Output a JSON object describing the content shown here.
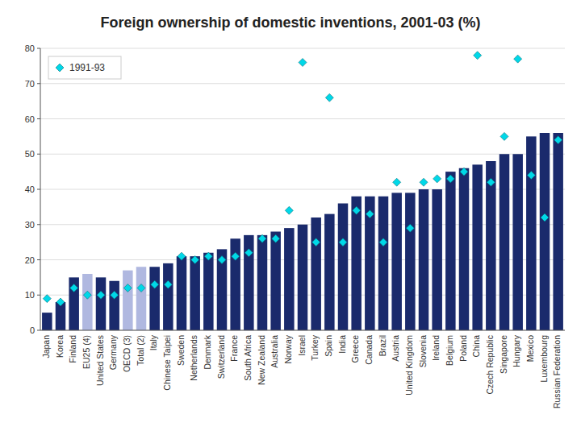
{
  "chart_data": {
    "type": "bar",
    "title": "Foreign ownership of domestic inventions, 2001-03 (%)",
    "categories": [
      "Japan",
      "Korea",
      "Finland",
      "EU25 (4)",
      "United States",
      "Germany",
      "OECD (3)",
      "Total (2)",
      "Italy",
      "Chinese Taipei",
      "Sweden",
      "Netherlands",
      "Denmark",
      "Switzerland",
      "France",
      "South Africa",
      "New Zealand",
      "Australia",
      "Norway",
      "Israel",
      "Turkey",
      "Spain",
      "India",
      "Greece",
      "Canada",
      "Brazil",
      "Austria",
      "United Kingdom",
      "Slovenia",
      "Ireland",
      "Belgium",
      "Poland",
      "China",
      "Czech Republic",
      "Singapore",
      "Hungary",
      "Mexico",
      "Luxembourg",
      "Russian Federation"
    ],
    "series": [
      {
        "type": "bar",
        "colors": [
          "#1a2a6c",
          "#1a2a6c",
          "#1a2a6c",
          "#b0b8e0",
          "#1a2a6c",
          "#1a2a6c",
          "#b0b8e0",
          "#b0b8e0",
          "#1a2a6c",
          "#1a2a6c",
          "#1a2a6c",
          "#1a2a6c",
          "#1a2a6c",
          "#1a2a6c",
          "#1a2a6c",
          "#1a2a6c",
          "#1a2a6c",
          "#1a2a6c",
          "#1a2a6c",
          "#1a2a6c",
          "#1a2a6c",
          "#1a2a6c",
          "#1a2a6c",
          "#1a2a6c",
          "#1a2a6c",
          "#1a2a6c",
          "#1a2a6c",
          "#1a2a6c",
          "#1a2a6c",
          "#1a2a6c",
          "#1a2a6c",
          "#1a2a6c",
          "#1a2a6c",
          "#1a2a6c",
          "#1a2a6c",
          "#1a2a6c",
          "#1a2a6c",
          "#1a2a6c",
          "#1a2a6c"
        ],
        "values": [
          5,
          8,
          15,
          16,
          15,
          14,
          17,
          18,
          18,
          19,
          21,
          21,
          22,
          23,
          26,
          27,
          27,
          28,
          29,
          30,
          32,
          33,
          36,
          38,
          38,
          38,
          39,
          39,
          40,
          40,
          45,
          46,
          47,
          48,
          50,
          50,
          55,
          56,
          56
        ]
      },
      {
        "name": "1991-93",
        "type": "scatter",
        "marker": "diamond",
        "color": "#00d8e8",
        "values": [
          9,
          8,
          12,
          10,
          10,
          10,
          12,
          12,
          13,
          13,
          21,
          20,
          21,
          20,
          21,
          22,
          26,
          26,
          34,
          76,
          25,
          66,
          25,
          34,
          33,
          25,
          42,
          29,
          42,
          43,
          43,
          45,
          78,
          42,
          55,
          77,
          44,
          32,
          54
        ]
      }
    ],
    "ylim": [
      0,
      80
    ],
    "yticks": [
      0,
      10,
      20,
      30,
      40,
      50,
      60,
      70,
      80
    ],
    "grid": true,
    "legend": "upper left"
  }
}
